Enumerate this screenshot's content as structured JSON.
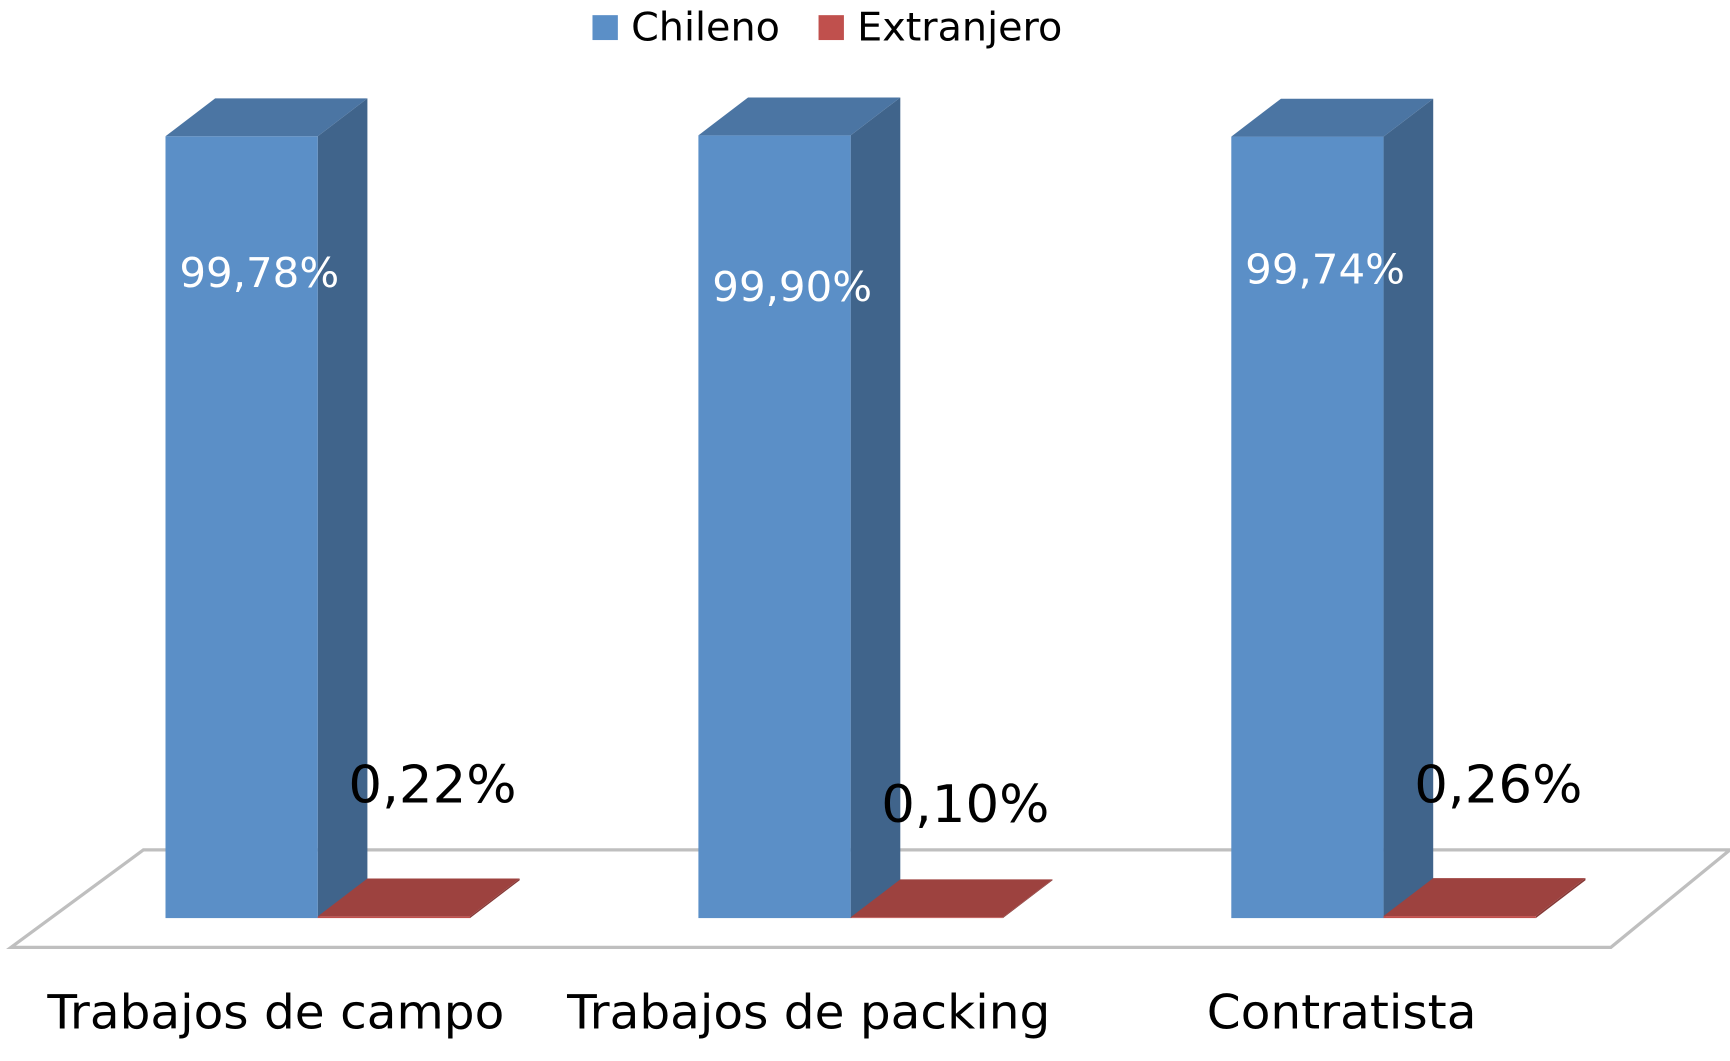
{
  "chart_data": {
    "type": "bar3d",
    "categories": [
      "Trabajos de campo",
      "Trabajos de packing",
      "Contratista"
    ],
    "series": [
      {
        "name": "Chileno",
        "color": "#5b8fc7",
        "values": [
          99.78,
          99.9,
          99.74
        ],
        "value_labels": [
          "99,78%",
          "99,90%",
          "99,74%"
        ]
      },
      {
        "name": "Extranjero",
        "color": "#c0504d",
        "values": [
          0.22,
          0.1,
          0.26
        ],
        "value_labels": [
          "0,22%",
          "0,10%",
          "0,26%"
        ]
      }
    ]
  }
}
